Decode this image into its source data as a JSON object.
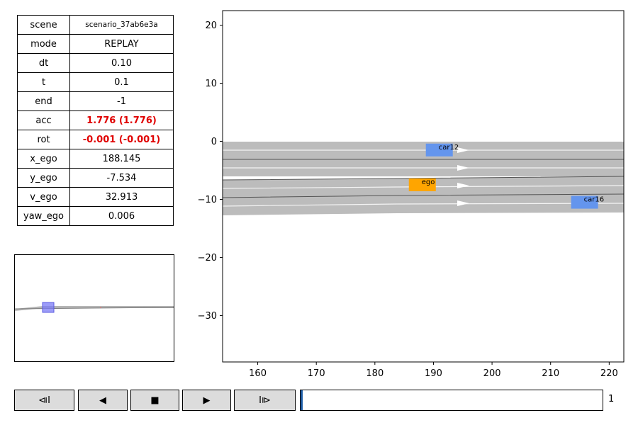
{
  "info": {
    "rows": [
      {
        "key": "scene",
        "value": "scenario_37ab6e3a"
      },
      {
        "key": "mode",
        "value": "REPLAY"
      },
      {
        "key": "dt",
        "value": "0.10"
      },
      {
        "key": "t",
        "value": "0.1"
      },
      {
        "key": "end",
        "value": "-1"
      },
      {
        "key": "acc",
        "value": "1.776 (1.776)"
      },
      {
        "key": "rot",
        "value": "-0.001 (-0.001)"
      },
      {
        "key": "x_ego",
        "value": "188.145"
      },
      {
        "key": "y_ego",
        "value": "-7.534"
      },
      {
        "key": "v_ego",
        "value": "32.913"
      },
      {
        "key": "yaw_ego",
        "value": "0.006"
      }
    ],
    "alert_color": "#e00000"
  },
  "controls": {
    "first_icon": "⧏I",
    "prev_icon": "◀",
    "stop_icon": "■",
    "play_icon": "▶",
    "last_icon": "I⧐",
    "progress": 0.005,
    "frame": "1"
  },
  "plot": {
    "xlim": [
      154,
      222.5
    ],
    "ylim": [
      -38,
      22.5
    ],
    "xticks": [
      "160",
      "170",
      "180",
      "190",
      "200",
      "210",
      "220"
    ],
    "yticks": [
      "20",
      "10",
      "0",
      "−10",
      "−20",
      "−30"
    ],
    "road_color": "#bcbcbc",
    "vehicles": [
      {
        "label": "car12",
        "x": 191,
        "y": -1.5,
        "color": "#6495ed"
      },
      {
        "label": "ego",
        "x": 188.1,
        "y": -7.5,
        "color": "#ffa500"
      },
      {
        "label": "car16",
        "x": 215.8,
        "y": -10.5,
        "color": "#6495ed"
      }
    ]
  },
  "minimap": {
    "ego_color": "#7b7bf5"
  }
}
